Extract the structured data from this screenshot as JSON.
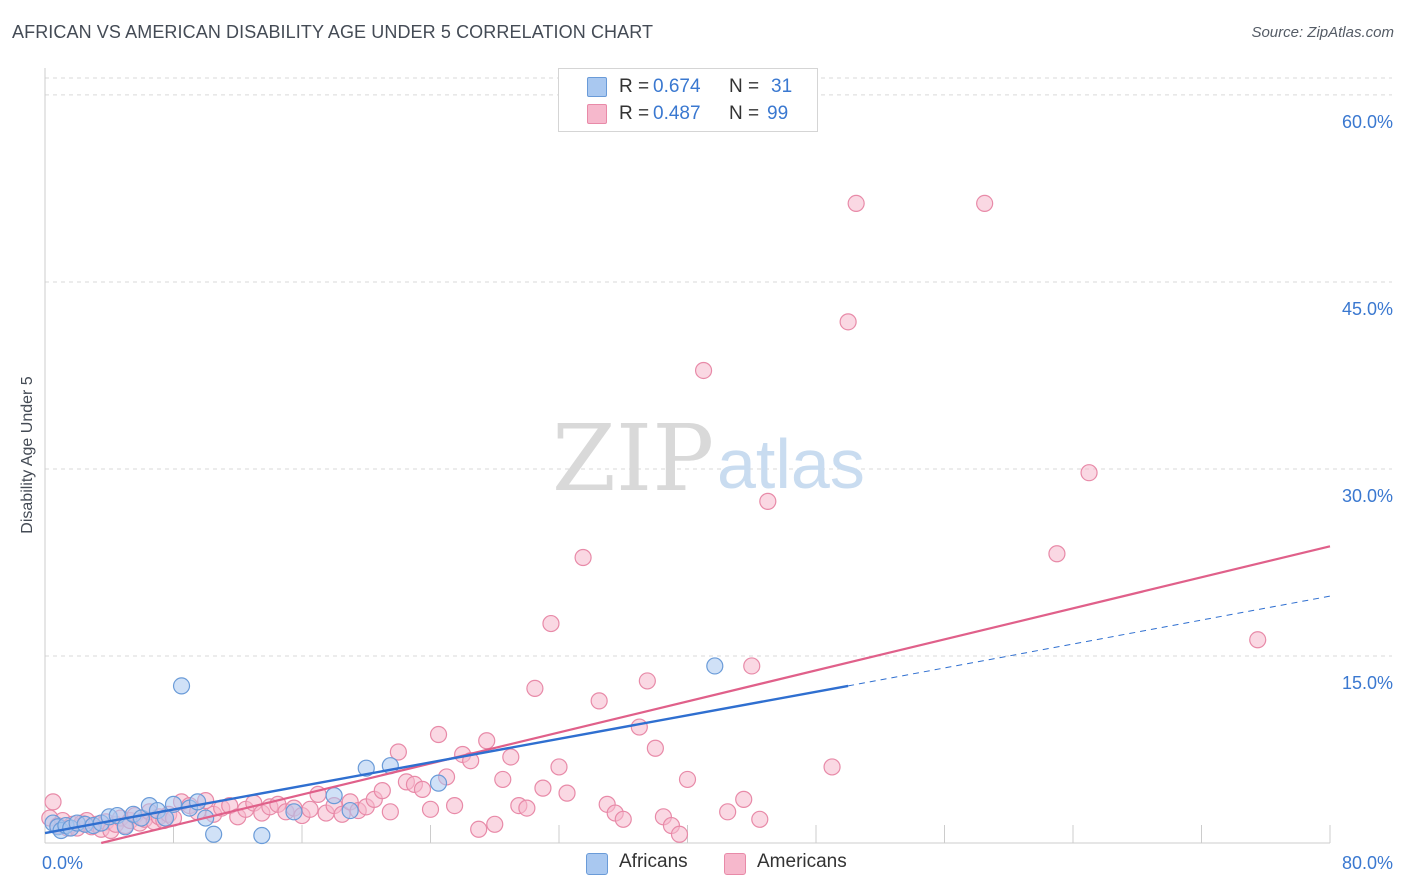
{
  "title": "AFRICAN VS AMERICAN DISABILITY AGE UNDER 5 CORRELATION CHART",
  "source": "Source: ZipAtlas.com",
  "watermark": {
    "zip": "ZIP",
    "atlas": "atlas"
  },
  "legend": {
    "rows": [
      {
        "r_label": "R =",
        "r_value": "0.674",
        "n_label": "N =",
        "n_value": "31"
      },
      {
        "r_label": "R =",
        "r_value": "0.487",
        "n_label": "N =",
        "n_value": "99"
      }
    ]
  },
  "bottom_legend": {
    "africans": "Africans",
    "americans": "Americans"
  },
  "colors": {
    "blue_fill": "#a9c8f0",
    "blue_stroke": "#6a9bd8",
    "blue_line": "#2f6fd0",
    "pink_fill": "#f6b8cc",
    "pink_stroke": "#e88aa8",
    "pink_line": "#e0608a",
    "grid": "#d9d9d9",
    "tick_text": "#3a78d0"
  },
  "chart_data": {
    "type": "scatter",
    "title": "AFRICAN VS AMERICAN DISABILITY AGE UNDER 5 CORRELATION CHART",
    "xlabel": "",
    "ylabel": "Disability Age Under 5",
    "xlim": [
      0,
      80
    ],
    "ylim": [
      0,
      62
    ],
    "x_tick_labels": [
      {
        "value": 0,
        "label": "0.0%"
      },
      {
        "value": 80,
        "label": "80.0%"
      }
    ],
    "y_ticks": [
      {
        "value": 15,
        "label": "15.0%"
      },
      {
        "value": 30,
        "label": "30.0%"
      },
      {
        "value": 45,
        "label": "45.0%"
      },
      {
        "value": 60,
        "label": "60.0%"
      }
    ],
    "series": [
      {
        "name": "Africans",
        "r": 0.674,
        "n": 31,
        "trend": {
          "x0": 0,
          "y0": 0.8,
          "x1": 50,
          "y1": 12.6,
          "dashed_to_x": 80,
          "dashed_to_y": 19.8
        },
        "points": [
          [
            0.5,
            1.6
          ],
          [
            0.8,
            1.3
          ],
          [
            1.0,
            1.0
          ],
          [
            1.3,
            1.4
          ],
          [
            1.6,
            1.2
          ],
          [
            2.0,
            1.6
          ],
          [
            2.5,
            1.5
          ],
          [
            3.0,
            1.4
          ],
          [
            3.5,
            1.6
          ],
          [
            4.0,
            2.1
          ],
          [
            4.5,
            2.2
          ],
          [
            5.0,
            1.3
          ],
          [
            5.5,
            2.3
          ],
          [
            6.0,
            2.0
          ],
          [
            6.5,
            3.0
          ],
          [
            7.0,
            2.6
          ],
          [
            7.5,
            2.0
          ],
          [
            8.0,
            3.1
          ],
          [
            8.5,
            12.6
          ],
          [
            9.0,
            2.8
          ],
          [
            9.5,
            3.3
          ],
          [
            10.0,
            2.0
          ],
          [
            10.5,
            0.7
          ],
          [
            13.5,
            0.6
          ],
          [
            15.5,
            2.5
          ],
          [
            18.0,
            3.8
          ],
          [
            19.0,
            2.6
          ],
          [
            20.0,
            6.0
          ],
          [
            21.5,
            6.2
          ],
          [
            24.5,
            4.8
          ],
          [
            41.7,
            14.2
          ]
        ]
      },
      {
        "name": "Americans",
        "r": 0.487,
        "n": 99,
        "trend": {
          "x0": 3.5,
          "y0": 0.0,
          "x1": 80,
          "y1": 23.8
        },
        "points": [
          [
            0.3,
            2.0
          ],
          [
            0.5,
            3.3
          ],
          [
            0.8,
            1.4
          ],
          [
            1.1,
            1.8
          ],
          [
            1.4,
            1.2
          ],
          [
            1.7,
            1.5
          ],
          [
            2.0,
            1.2
          ],
          [
            2.3,
            1.6
          ],
          [
            2.6,
            1.8
          ],
          [
            2.9,
            1.3
          ],
          [
            3.2,
            1.5
          ],
          [
            3.5,
            1.1
          ],
          [
            3.8,
            1.7
          ],
          [
            4.1,
            1.0
          ],
          [
            4.4,
            1.5
          ],
          [
            4.7,
            2.0
          ],
          [
            5.0,
            1.4
          ],
          [
            5.3,
            1.8
          ],
          [
            5.6,
            2.2
          ],
          [
            5.9,
            1.6
          ],
          [
            6.2,
            1.9
          ],
          [
            6.5,
            2.5
          ],
          [
            6.8,
            1.7
          ],
          [
            7.1,
            2.1
          ],
          [
            7.4,
            1.8
          ],
          [
            7.7,
            2.3
          ],
          [
            8.0,
            2.0
          ],
          [
            8.5,
            3.3
          ],
          [
            9.0,
            3.0
          ],
          [
            9.5,
            2.5
          ],
          [
            10.0,
            3.4
          ],
          [
            10.5,
            2.3
          ],
          [
            11.0,
            2.8
          ],
          [
            11.5,
            3.0
          ],
          [
            12.0,
            2.1
          ],
          [
            12.5,
            2.7
          ],
          [
            13.0,
            3.2
          ],
          [
            13.5,
            2.4
          ],
          [
            14.0,
            2.9
          ],
          [
            14.5,
            3.1
          ],
          [
            15.0,
            2.5
          ],
          [
            15.5,
            2.8
          ],
          [
            16.0,
            2.2
          ],
          [
            16.5,
            2.7
          ],
          [
            17.0,
            3.9
          ],
          [
            17.5,
            2.4
          ],
          [
            18.0,
            3.0
          ],
          [
            18.5,
            2.3
          ],
          [
            19.0,
            3.3
          ],
          [
            19.5,
            2.6
          ],
          [
            20.0,
            2.9
          ],
          [
            20.5,
            3.5
          ],
          [
            21.0,
            4.2
          ],
          [
            21.5,
            2.5
          ],
          [
            22.0,
            7.3
          ],
          [
            22.5,
            4.9
          ],
          [
            23.0,
            4.7
          ],
          [
            23.5,
            4.3
          ],
          [
            24.0,
            2.7
          ],
          [
            24.5,
            8.7
          ],
          [
            25.0,
            5.3
          ],
          [
            25.5,
            3.0
          ],
          [
            26.0,
            7.1
          ],
          [
            26.5,
            6.6
          ],
          [
            27.0,
            1.1
          ],
          [
            27.5,
            8.2
          ],
          [
            28.0,
            1.5
          ],
          [
            28.5,
            5.1
          ],
          [
            29.0,
            6.9
          ],
          [
            29.5,
            3.0
          ],
          [
            30.0,
            2.8
          ],
          [
            30.5,
            12.4
          ],
          [
            31.0,
            4.4
          ],
          [
            31.5,
            17.6
          ],
          [
            32.0,
            6.1
          ],
          [
            32.5,
            4.0
          ],
          [
            33.5,
            22.9
          ],
          [
            34.5,
            11.4
          ],
          [
            35.0,
            3.1
          ],
          [
            35.5,
            2.4
          ],
          [
            36.0,
            1.9
          ],
          [
            37.0,
            9.3
          ],
          [
            37.5,
            13.0
          ],
          [
            38.0,
            7.6
          ],
          [
            38.5,
            2.1
          ],
          [
            39.0,
            1.4
          ],
          [
            39.5,
            0.7
          ],
          [
            40.0,
            5.1
          ],
          [
            41.0,
            37.9
          ],
          [
            42.5,
            2.5
          ],
          [
            43.5,
            3.5
          ],
          [
            44.0,
            14.2
          ],
          [
            45.0,
            27.4
          ],
          [
            49.0,
            6.1
          ],
          [
            50.0,
            41.8
          ],
          [
            50.5,
            51.3
          ],
          [
            58.5,
            51.3
          ],
          [
            63.0,
            23.2
          ],
          [
            65.0,
            29.7
          ],
          [
            75.5,
            16.3
          ],
          [
            44.5,
            1.9
          ]
        ]
      }
    ]
  }
}
